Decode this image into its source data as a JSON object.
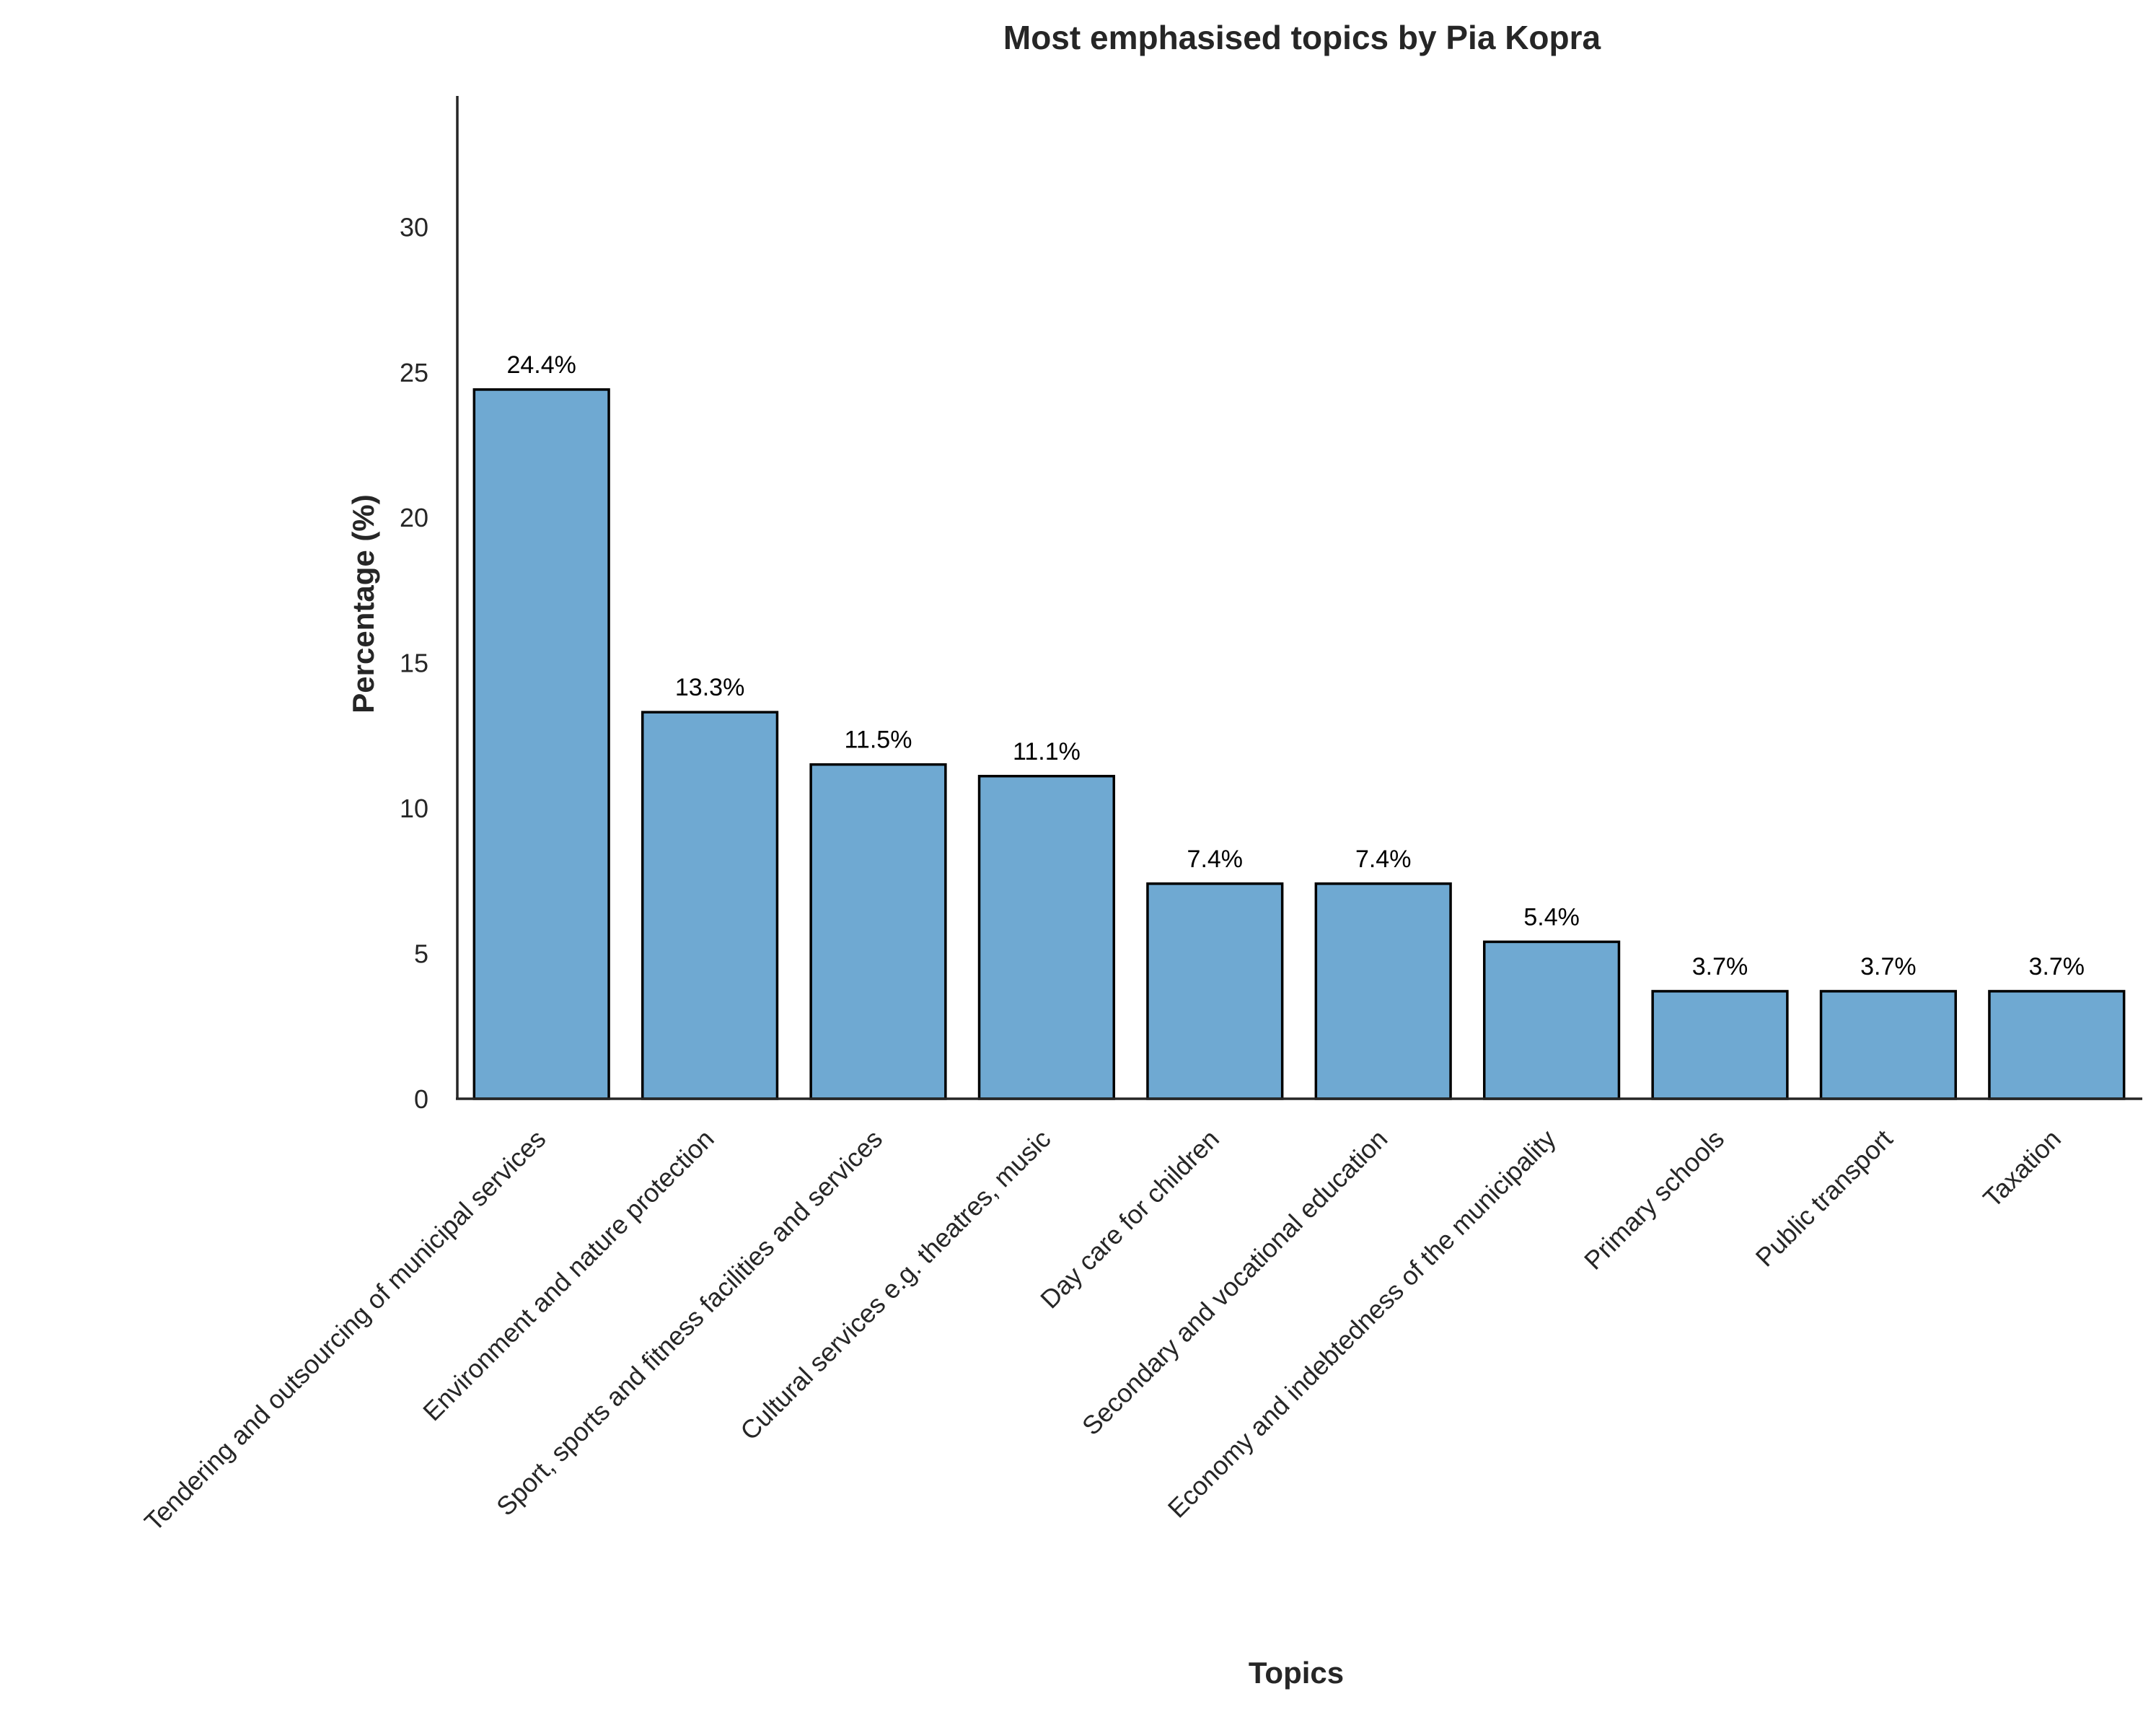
{
  "chart_data": {
    "type": "bar",
    "title": "Most emphasised topics by Pia Kopra",
    "xlabel": "Topics",
    "ylabel": "Percentage (%)",
    "categories": [
      "Tendering and outsourcing of municipal services",
      "Environment and nature protection",
      "Sport, sports and fitness facilities and services",
      "Cultural services e.g. theatres, music",
      "Day care for children",
      "Secondary and vocational education",
      "Economy and indebtedness of the municipality",
      "Primary schools",
      "Public transport",
      "Taxation"
    ],
    "values": [
      24.4,
      13.3,
      11.5,
      11.1,
      7.4,
      7.4,
      5.4,
      3.7,
      3.7,
      3.7
    ],
    "data_labels": [
      "24.4%",
      "13.3%",
      "11.5%",
      "11.1%",
      "7.4%",
      "7.4%",
      "5.4%",
      "3.7%",
      "3.7%",
      "3.7%"
    ],
    "ylim": [
      0,
      34.5
    ],
    "yticks": [
      0,
      5,
      10,
      15,
      20,
      25,
      30
    ],
    "grid": false,
    "legend": "none",
    "colors": {
      "bar_fill": "#6fa9d2",
      "bar_edge": "#000000",
      "axis": "#262626",
      "text": "#262626"
    }
  }
}
